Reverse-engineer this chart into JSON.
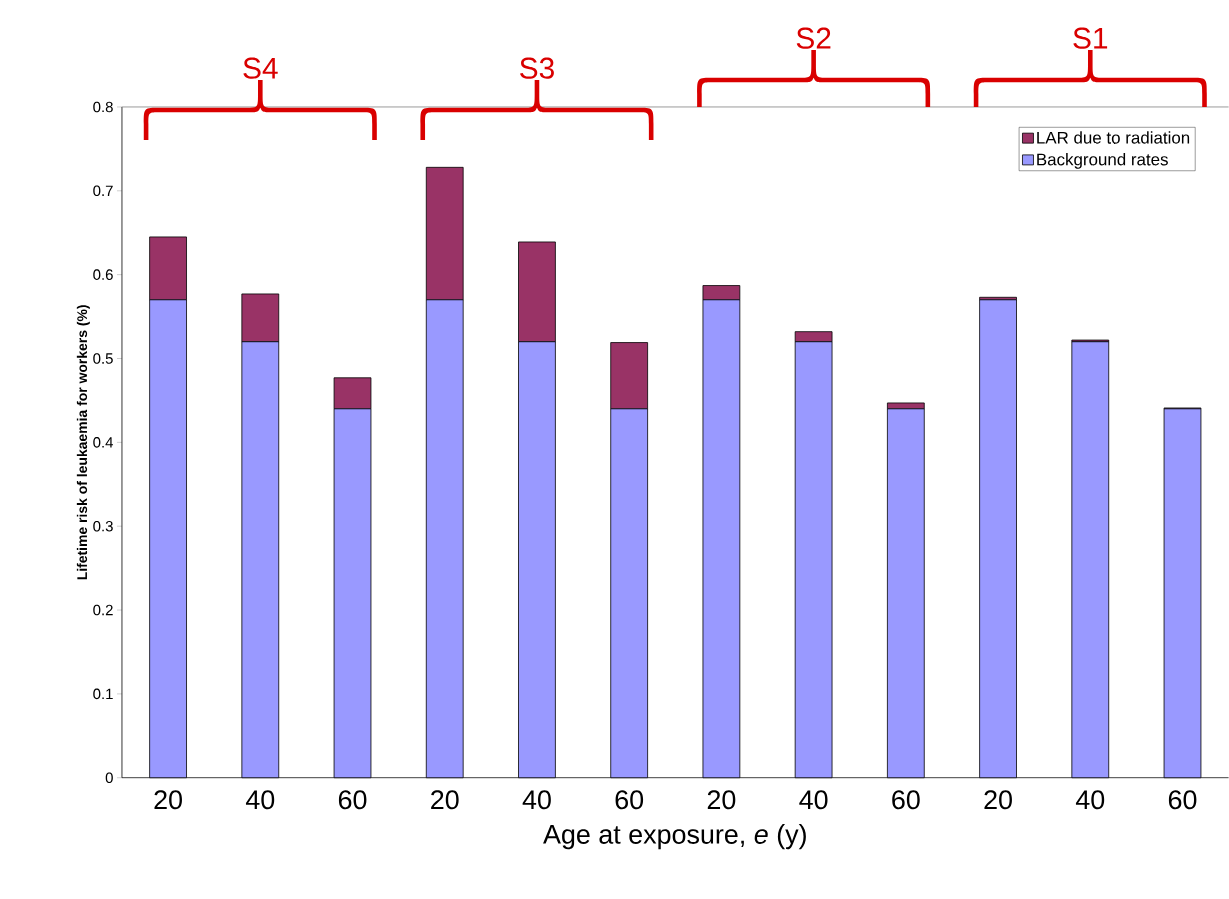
{
  "chart_data": {
    "type": "bar",
    "stacked": true,
    "xlabel": "Age at exposure, *e* (y)",
    "ylabel": "Lifetime risk of leukaemia for workers (%)",
    "categories": [
      "20",
      "40",
      "60",
      "20",
      "40",
      "60",
      "20",
      "40",
      "60",
      "20",
      "40",
      "60"
    ],
    "series": [
      {
        "name": "Background rates",
        "color": "#9999ff",
        "values": [
          0.57,
          0.52,
          0.44,
          0.57,
          0.52,
          0.44,
          0.57,
          0.52,
          0.44,
          0.57,
          0.52,
          0.44
        ]
      },
      {
        "name": "LAR due to radiation",
        "color": "#993366",
        "values": [
          0.075,
          0.057,
          0.037,
          0.158,
          0.119,
          0.079,
          0.017,
          0.012,
          0.007,
          0.003,
          0.002,
          0.001
        ]
      }
    ],
    "ylim": [
      0,
      0.8
    ],
    "yticks": [
      0,
      0.1,
      0.2,
      0.3,
      0.4,
      0.5,
      0.6,
      0.7,
      0.8
    ],
    "legend": "top right",
    "annotations": [
      "S4",
      "S3",
      "S2",
      "S1"
    ]
  }
}
